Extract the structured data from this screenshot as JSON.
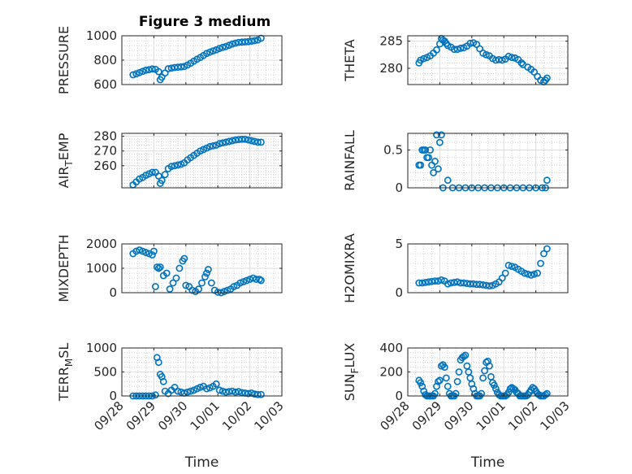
{
  "figure": {
    "title": "Figure 3 medium"
  },
  "chart_data": [
    {
      "type": "scatter",
      "id": "pressure",
      "title": "Figure 3 medium",
      "ylabel": {
        "main": "PRESSURE"
      },
      "xlabel": "",
      "xlim": [
        0,
        5
      ],
      "ylim": [
        600,
        1000
      ],
      "xticks": [
        0,
        1,
        2,
        3,
        4,
        5
      ],
      "yticks": [
        600,
        800,
        1000
      ],
      "yticklabels": [
        "600",
        "800",
        "1000"
      ],
      "grid": true,
      "minor_grid": true,
      "x": [
        0.35,
        0.45,
        0.55,
        0.65,
        0.75,
        0.85,
        0.95,
        1.05,
        1.15,
        1.2,
        1.25,
        1.35,
        1.45,
        1.55,
        1.65,
        1.75,
        1.85,
        1.95,
        2.05,
        2.15,
        2.25,
        2.35,
        2.45,
        2.55,
        2.65,
        2.75,
        2.85,
        2.95,
        3.05,
        3.15,
        3.25,
        3.35,
        3.45,
        3.55,
        3.65,
        3.75,
        3.85,
        3.95,
        4.05,
        4.15,
        4.25,
        4.35
      ],
      "y": [
        680,
        688,
        698,
        708,
        718,
        722,
        728,
        725,
        706,
        640,
        660,
        695,
        730,
        735,
        740,
        742,
        745,
        748,
        760,
        775,
        792,
        808,
        822,
        838,
        855,
        866,
        876,
        885,
        896,
        905,
        912,
        922,
        932,
        940,
        946,
        948,
        950,
        952,
        956,
        960,
        966,
        980
      ]
    },
    {
      "type": "scatter",
      "id": "theta",
      "ylabel": {
        "main": "THETA"
      },
      "xlabel": "",
      "xlim": [
        0,
        5
      ],
      "ylim": [
        277,
        286
      ],
      "xticks": [
        0,
        1,
        2,
        3,
        4,
        5
      ],
      "yticks": [
        280,
        285
      ],
      "yticklabels": [
        "280",
        "285"
      ],
      "grid": true,
      "minor_grid": true,
      "x": [
        0.35,
        0.4,
        0.5,
        0.6,
        0.7,
        0.8,
        0.9,
        1.0,
        1.05,
        1.1,
        1.15,
        1.2,
        1.25,
        1.35,
        1.45,
        1.55,
        1.65,
        1.75,
        1.85,
        1.95,
        2.05,
        2.15,
        2.25,
        2.35,
        2.45,
        2.55,
        2.65,
        2.75,
        2.85,
        2.95,
        3.05,
        3.15,
        3.25,
        3.35,
        3.45,
        3.55,
        3.6,
        3.75,
        3.85,
        3.95,
        4.05,
        4.15,
        4.25,
        4.3,
        4.35
      ],
      "y": [
        281,
        281.5,
        281.8,
        282,
        282.3,
        282.8,
        283.4,
        284.5,
        285.5,
        285.2,
        285,
        284.6,
        284.2,
        283.9,
        283.5,
        283.5,
        283.7,
        283.8,
        284.1,
        284.6,
        284.7,
        284.4,
        283.6,
        282.8,
        282.5,
        282.3,
        281.8,
        281.5,
        281.6,
        281.5,
        281.7,
        282.2,
        282,
        281.9,
        281.6,
        281,
        280.7,
        280.2,
        279.8,
        279.3,
        278.5,
        277.8,
        277.5,
        277.8,
        278.2
      ]
    },
    {
      "type": "scatter",
      "id": "air-temp",
      "ylabel": {
        "main": "AIR",
        "sub": "T",
        "tail": "EMP"
      },
      "xlabel": "",
      "xlim": [
        0,
        5
      ],
      "ylim": [
        245,
        282
      ],
      "xticks": [
        0,
        1,
        2,
        3,
        4,
        5
      ],
      "yticks": [
        260,
        270,
        280
      ],
      "yticklabels": [
        "260",
        "270",
        "280"
      ],
      "grid": true,
      "minor_grid": true,
      "x": [
        0.35,
        0.45,
        0.55,
        0.65,
        0.75,
        0.85,
        0.95,
        1.05,
        1.15,
        1.2,
        1.25,
        1.35,
        1.45,
        1.55,
        1.65,
        1.75,
        1.85,
        1.95,
        2.05,
        2.15,
        2.25,
        2.35,
        2.45,
        2.55,
        2.65,
        2.75,
        2.85,
        2.95,
        3.05,
        3.15,
        3.25,
        3.35,
        3.45,
        3.55,
        3.65,
        3.75,
        3.85,
        3.95,
        4.05,
        4.15,
        4.25,
        4.35
      ],
      "y": [
        247,
        249,
        251,
        252,
        253.5,
        254.5,
        255.5,
        255.5,
        253,
        248,
        250,
        254,
        258,
        259.5,
        260,
        260.5,
        261,
        262,
        264,
        265.5,
        267,
        268.5,
        270,
        271,
        272,
        273,
        273.5,
        274,
        275,
        275.5,
        276,
        276.5,
        277,
        277.5,
        277.8,
        278,
        278,
        277.5,
        277,
        276.5,
        276,
        276
      ]
    },
    {
      "type": "scatter",
      "id": "rainfall",
      "ylabel": {
        "main": "RAINFALL"
      },
      "xlabel": "",
      "xlim": [
        0,
        5
      ],
      "ylim": [
        0,
        0.72
      ],
      "xticks": [
        0,
        1,
        2,
        3,
        4,
        5
      ],
      "yticks": [
        0,
        0.5
      ],
      "yticklabels": [
        "0",
        "0.5"
      ],
      "grid": true,
      "minor_grid": true,
      "x": [
        0.35,
        0.4,
        0.45,
        0.5,
        0.55,
        0.6,
        0.65,
        0.7,
        0.75,
        0.8,
        0.85,
        0.9,
        0.95,
        1.0,
        1.05,
        1.1,
        1.25,
        1.4,
        1.6,
        1.8,
        2.0,
        2.2,
        2.4,
        2.6,
        2.8,
        3.0,
        3.2,
        3.4,
        3.6,
        3.8,
        4.0,
        4.2,
        4.3,
        4.35
      ],
      "y": [
        0.3,
        0.3,
        0.5,
        0.5,
        0.5,
        0.4,
        0.4,
        0.5,
        0.3,
        0.2,
        0.35,
        0.7,
        0.25,
        0.6,
        0.7,
        0,
        0.1,
        0,
        0,
        0,
        0,
        0,
        0,
        0,
        0,
        0,
        0,
        0,
        0,
        0,
        0,
        0,
        0,
        0.1
      ]
    },
    {
      "type": "scatter",
      "id": "mixdepth",
      "ylabel": {
        "main": "MIXDEPTH"
      },
      "xlabel": "",
      "xlim": [
        0,
        5
      ],
      "ylim": [
        0,
        2000
      ],
      "xticks": [
        0,
        1,
        2,
        3,
        4,
        5
      ],
      "yticks": [
        0,
        1000,
        2000
      ],
      "yticklabels": [
        "0",
        "1000",
        "2000"
      ],
      "grid": true,
      "minor_grid": true,
      "x": [
        0.35,
        0.45,
        0.55,
        0.65,
        0.75,
        0.85,
        0.95,
        1.0,
        1.05,
        1.1,
        1.15,
        1.2,
        1.3,
        1.4,
        1.5,
        1.6,
        1.7,
        1.8,
        1.9,
        1.95,
        2.0,
        2.1,
        2.2,
        2.3,
        2.4,
        2.5,
        2.6,
        2.65,
        2.7,
        2.8,
        2.9,
        3.0,
        3.1,
        3.2,
        3.3,
        3.4,
        3.5,
        3.6,
        3.7,
        3.8,
        3.9,
        4.0,
        4.1,
        4.2,
        4.3,
        4.35
      ],
      "y": [
        1600,
        1700,
        1750,
        1700,
        1650,
        1600,
        1550,
        1700,
        250,
        1050,
        1000,
        1050,
        700,
        800,
        150,
        400,
        600,
        1000,
        1300,
        1400,
        300,
        250,
        100,
        50,
        150,
        400,
        650,
        800,
        950,
        400,
        100,
        20,
        0,
        50,
        100,
        150,
        250,
        300,
        400,
        450,
        500,
        550,
        600,
        550,
        550,
        500
      ]
    },
    {
      "type": "scatter",
      "id": "h2omixra",
      "ylabel": {
        "main": "H2OMIXRA"
      },
      "xlabel": "",
      "xlim": [
        0,
        5
      ],
      "ylim": [
        0,
        5
      ],
      "xticks": [
        0,
        1,
        2,
        3,
        4,
        5
      ],
      "yticks": [
        0,
        5
      ],
      "yticklabels": [
        "0",
        "5"
      ],
      "grid": true,
      "minor_grid": true,
      "x": [
        0.35,
        0.45,
        0.55,
        0.65,
        0.75,
        0.85,
        0.95,
        1.05,
        1.15,
        1.25,
        1.35,
        1.45,
        1.55,
        1.65,
        1.75,
        1.85,
        1.95,
        2.05,
        2.15,
        2.25,
        2.35,
        2.45,
        2.55,
        2.65,
        2.75,
        2.85,
        2.95,
        3.05,
        3.15,
        3.25,
        3.35,
        3.45,
        3.55,
        3.65,
        3.75,
        3.85,
        3.95,
        4.05,
        4.15,
        4.25,
        4.35
      ],
      "y": [
        1,
        1,
        1.05,
        1.1,
        1.15,
        1.2,
        1.2,
        1.3,
        1.2,
        0.9,
        1,
        1.05,
        1.1,
        1,
        1,
        0.95,
        0.9,
        0.9,
        0.85,
        0.85,
        0.8,
        0.75,
        0.7,
        0.75,
        0.9,
        1.1,
        1.5,
        2,
        2.8,
        2.7,
        2.6,
        2.4,
        2.2,
        2,
        1.9,
        1.8,
        1.9,
        2,
        3,
        4,
        4.5
      ]
    },
    {
      "type": "scatter",
      "id": "terrmsl",
      "ylabel": {
        "main": "TERR",
        "sub": "M",
        "tail": "SL"
      },
      "xlabel": "Time",
      "xlim": [
        0,
        5
      ],
      "ylim": [
        0,
        1000
      ],
      "xticks": [
        0,
        1,
        2,
        3,
        4,
        5
      ],
      "xticklabels": [
        "09/28",
        "09/29",
        "09/30",
        "10/01",
        "10/02",
        "10/03"
      ],
      "yticks": [
        0,
        500,
        1000
      ],
      "yticklabels": [
        "0",
        "500",
        "1000"
      ],
      "grid": true,
      "minor_grid": true,
      "x": [
        0.35,
        0.45,
        0.55,
        0.65,
        0.75,
        0.85,
        0.95,
        1.05,
        1.1,
        1.15,
        1.2,
        1.25,
        1.3,
        1.35,
        1.45,
        1.55,
        1.65,
        1.75,
        1.85,
        1.95,
        2.05,
        2.15,
        2.25,
        2.35,
        2.45,
        2.55,
        2.65,
        2.75,
        2.85,
        2.95,
        3.05,
        3.15,
        3.25,
        3.35,
        3.45,
        3.55,
        3.65,
        3.75,
        3.85,
        3.95,
        4.05,
        4.15,
        4.25,
        4.35
      ],
      "y": [
        0,
        0,
        0,
        0,
        0,
        0,
        0,
        20,
        800,
        700,
        450,
        400,
        300,
        100,
        50,
        120,
        180,
        100,
        80,
        60,
        80,
        100,
        120,
        150,
        180,
        200,
        150,
        170,
        200,
        250,
        120,
        100,
        80,
        90,
        100,
        80,
        90,
        70,
        60,
        50,
        60,
        40,
        30,
        30
      ]
    },
    {
      "type": "scatter",
      "id": "sunflux",
      "ylabel": {
        "main": "SUN",
        "sub": "F",
        "tail": "LUX"
      },
      "xlabel": "Time",
      "xlim": [
        0,
        5
      ],
      "ylim": [
        0,
        400
      ],
      "xticks": [
        0,
        1,
        2,
        3,
        4,
        5
      ],
      "xticklabels": [
        "09/28",
        "09/29",
        "09/30",
        "10/01",
        "10/02",
        "10/03"
      ],
      "yticks": [
        0,
        200,
        400
      ],
      "yticklabels": [
        "0",
        "200",
        "400"
      ],
      "grid": true,
      "minor_grid": true,
      "x": [
        0.35,
        0.4,
        0.45,
        0.5,
        0.55,
        0.6,
        0.65,
        0.7,
        0.75,
        0.8,
        0.85,
        0.9,
        0.95,
        1.0,
        1.05,
        1.1,
        1.15,
        1.2,
        1.25,
        1.3,
        1.35,
        1.4,
        1.45,
        1.5,
        1.55,
        1.6,
        1.65,
        1.7,
        1.75,
        1.8,
        1.85,
        1.9,
        1.95,
        2.0,
        2.05,
        2.1,
        2.15,
        2.2,
        2.25,
        2.3,
        2.35,
        2.4,
        2.45,
        2.5,
        2.55,
        2.6,
        2.65,
        2.7,
        2.75,
        2.8,
        2.85,
        2.9,
        2.95,
        3.0,
        3.05,
        3.1,
        3.15,
        3.2,
        3.25,
        3.3,
        3.35,
        3.4,
        3.45,
        3.5,
        3.55,
        3.6,
        3.65,
        3.7,
        3.75,
        3.8,
        3.85,
        3.9,
        3.95,
        4.0,
        4.05,
        4.1,
        4.15,
        4.2,
        4.25,
        4.3,
        4.35
      ],
      "y": [
        130,
        110,
        80,
        40,
        10,
        0,
        0,
        0,
        0,
        0,
        20,
        80,
        120,
        130,
        250,
        260,
        240,
        150,
        80,
        20,
        0,
        0,
        0,
        20,
        120,
        200,
        300,
        320,
        330,
        340,
        250,
        200,
        150,
        100,
        60,
        20,
        0,
        0,
        0,
        20,
        150,
        210,
        280,
        290,
        250,
        160,
        110,
        90,
        60,
        30,
        10,
        0,
        0,
        0,
        0,
        10,
        30,
        60,
        70,
        60,
        50,
        30,
        20,
        0,
        0,
        0,
        0,
        0,
        10,
        30,
        50,
        70,
        60,
        40,
        20,
        10,
        0,
        0,
        0,
        10,
        20
      ]
    }
  ]
}
